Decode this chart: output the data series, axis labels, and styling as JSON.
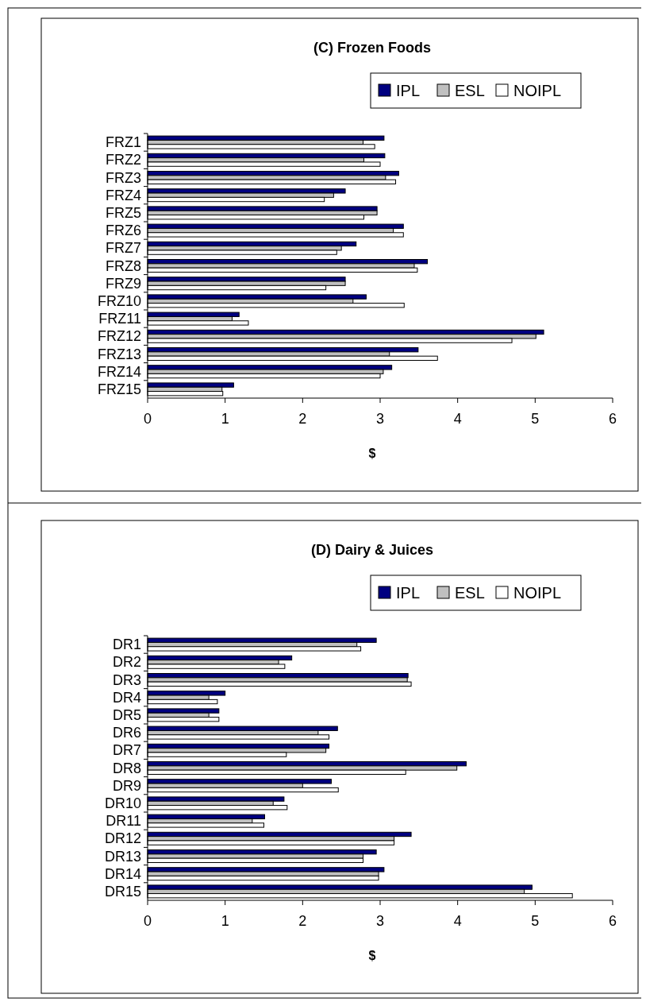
{
  "chart_data": [
    {
      "type": "bar",
      "orientation": "horizontal",
      "title": "(C) Frozen Foods",
      "xlabel": "$",
      "legend": "top right",
      "xlim": [
        0,
        6
      ],
      "xticks": [
        0,
        1,
        2,
        3,
        4,
        5,
        6
      ],
      "categories": [
        "FRZ1",
        "FRZ2",
        "FRZ3",
        "FRZ4",
        "FRZ5",
        "FRZ6",
        "FRZ7",
        "FRZ8",
        "FRZ9",
        "FRZ10",
        "FRZ11",
        "FRZ12",
        "FRZ13",
        "FRZ14",
        "FRZ15"
      ],
      "series": [
        {
          "name": "IPL",
          "color": "#000080",
          "values": [
            3.05,
            3.06,
            3.24,
            2.55,
            2.96,
            3.3,
            2.69,
            3.61,
            2.55,
            2.82,
            1.18,
            5.11,
            3.49,
            3.15,
            1.11
          ]
        },
        {
          "name": "ESL",
          "color": "#c0c0c0",
          "values": [
            2.78,
            2.79,
            3.07,
            2.4,
            2.96,
            3.17,
            2.5,
            3.44,
            2.55,
            2.65,
            1.09,
            5.01,
            3.12,
            3.04,
            0.96
          ]
        },
        {
          "name": "NOIPL",
          "color": "#ffffff",
          "values": [
            2.93,
            3.0,
            3.2,
            2.28,
            2.79,
            3.3,
            2.44,
            3.48,
            2.3,
            3.31,
            1.3,
            4.7,
            3.74,
            3.0,
            0.97
          ]
        }
      ]
    },
    {
      "type": "bar",
      "orientation": "horizontal",
      "title": "(D) Dairy & Juices",
      "xlabel": "$",
      "legend": "top right",
      "xlim": [
        0,
        6
      ],
      "xticks": [
        0,
        1,
        2,
        3,
        4,
        5,
        6
      ],
      "categories": [
        "DR1",
        "DR2",
        "DR3",
        "DR4",
        "DR5",
        "DR6",
        "DR7",
        "DR8",
        "DR9",
        "DR10",
        "DR11",
        "DR12",
        "DR13",
        "DR14",
        "DR15"
      ],
      "series": [
        {
          "name": "IPL",
          "color": "#000080",
          "values": [
            2.95,
            1.86,
            3.36,
            1.0,
            0.92,
            2.45,
            2.34,
            4.11,
            2.37,
            1.76,
            1.51,
            3.4,
            2.95,
            3.05,
            4.96
          ]
        },
        {
          "name": "ESL",
          "color": "#c0c0c0",
          "values": [
            2.7,
            1.69,
            3.35,
            0.79,
            0.79,
            2.2,
            2.3,
            3.99,
            2.0,
            1.62,
            1.35,
            3.18,
            2.78,
            2.98,
            4.86
          ]
        },
        {
          "name": "NOIPL",
          "color": "#ffffff",
          "values": [
            2.75,
            1.77,
            3.4,
            0.9,
            0.92,
            2.34,
            1.79,
            3.33,
            2.46,
            1.8,
            1.5,
            3.18,
            2.78,
            2.98,
            5.48
          ]
        }
      ]
    }
  ]
}
